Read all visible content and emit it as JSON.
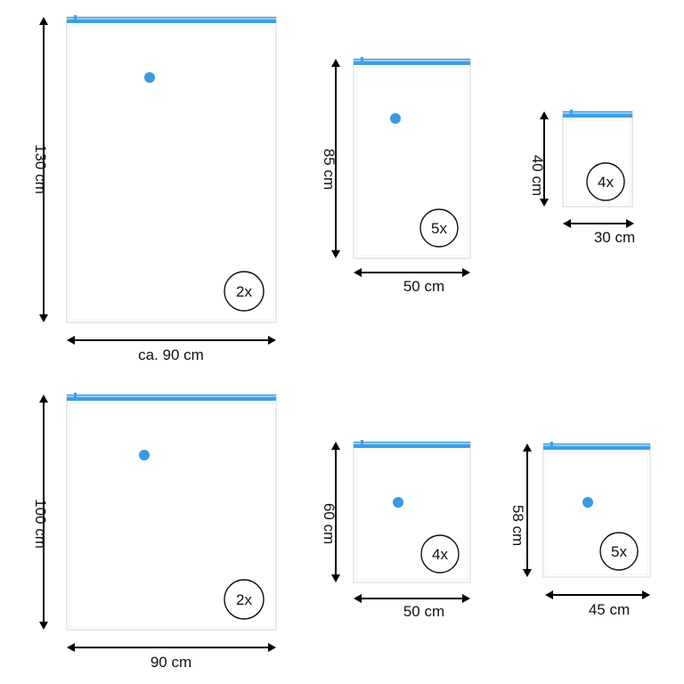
{
  "bags": [
    {
      "id": "bag-1",
      "height_label": "130 cm",
      "width_label": "ca. 90 cm",
      "quantity": "2x"
    },
    {
      "id": "bag-2",
      "height_label": "85 cm",
      "width_label": "50 cm",
      "quantity": "5x"
    },
    {
      "id": "bag-3",
      "height_label": "40 cm",
      "width_label": "30 cm",
      "quantity": "4x"
    },
    {
      "id": "bag-4",
      "height_label": "100 cm",
      "width_label": "90 cm",
      "quantity": "2x"
    },
    {
      "id": "bag-5",
      "height_label": "60 cm",
      "width_label": "50 cm",
      "quantity": "4x"
    },
    {
      "id": "bag-6",
      "height_label": "58 cm",
      "width_label": "45 cm",
      "quantity": "5x"
    }
  ],
  "colors": {
    "zipper": "#3f9fe3",
    "valve": "#3a98e0",
    "outline": "#dfe3e8",
    "ink": "#000000"
  }
}
